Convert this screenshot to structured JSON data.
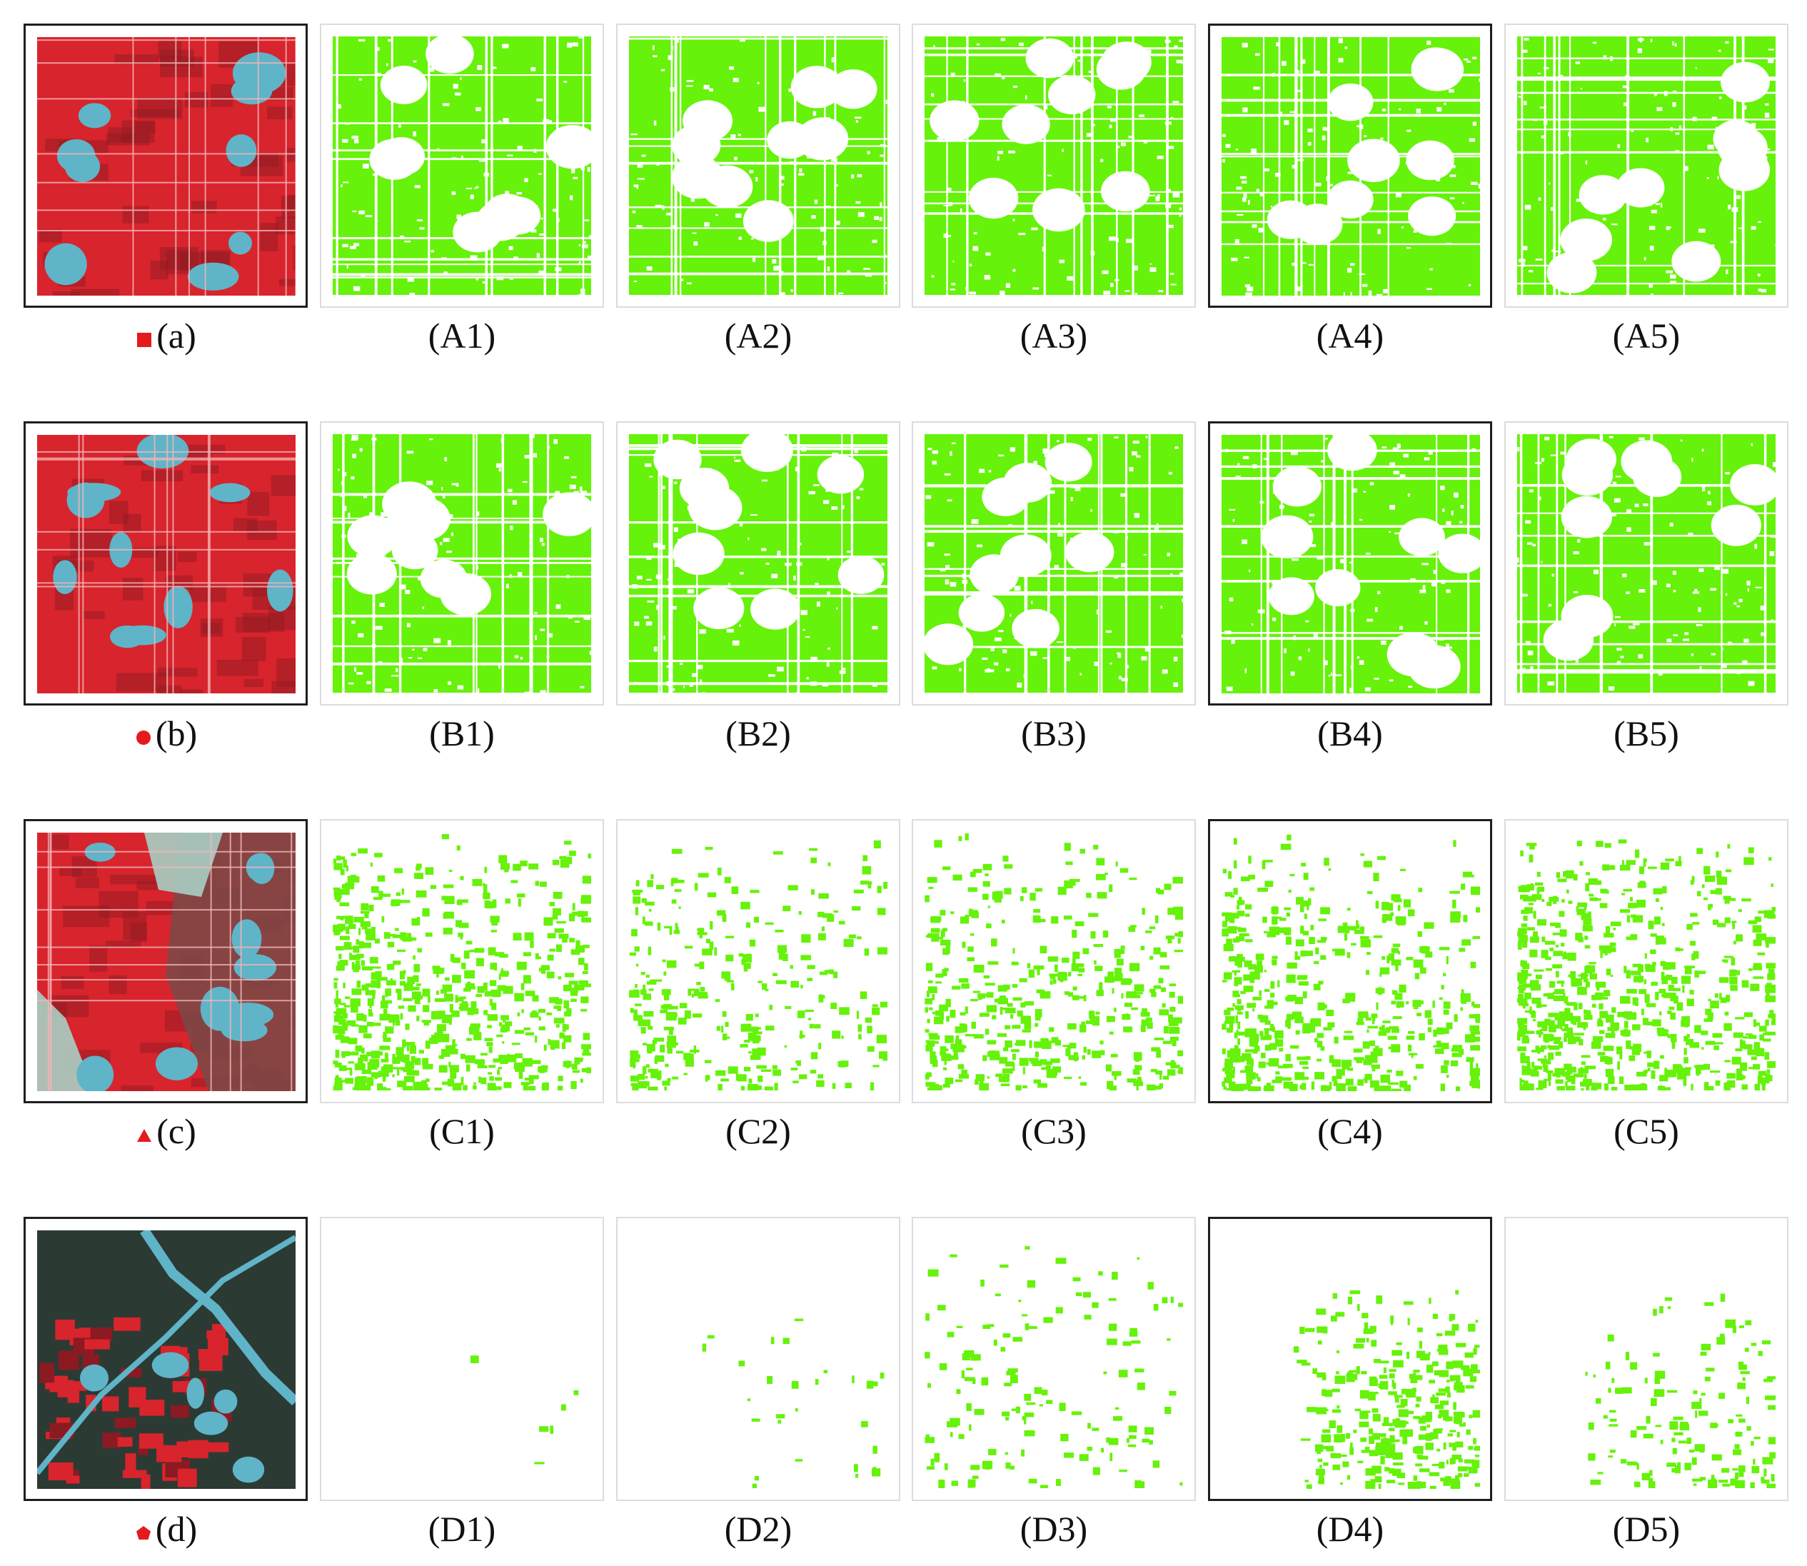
{
  "figure": {
    "rows": [
      {
        "id": "a",
        "marker_icon": "square-marker-icon",
        "marker_color": "#e41a1c",
        "panels": [
          {
            "label": "(a)",
            "kind": "image",
            "image_style": "false-color-red",
            "highlight": true
          },
          {
            "label": "(A1)",
            "kind": "map",
            "coverage": 0.82,
            "highlight": false
          },
          {
            "label": "(A2)",
            "kind": "map",
            "coverage": 0.84,
            "highlight": false
          },
          {
            "label": "(A3)",
            "kind": "map",
            "coverage": 0.84,
            "highlight": false
          },
          {
            "label": "(A4)",
            "kind": "map",
            "coverage": 0.85,
            "highlight": true
          },
          {
            "label": "(A5)",
            "kind": "map",
            "coverage": 0.86,
            "highlight": false
          }
        ]
      },
      {
        "id": "b",
        "marker_icon": "circle-marker-icon",
        "marker_color": "#e41a1c",
        "panels": [
          {
            "label": "(b)",
            "kind": "image",
            "image_style": "false-color-red",
            "highlight": true
          },
          {
            "label": "(B1)",
            "kind": "map",
            "coverage": 0.8,
            "highlight": false
          },
          {
            "label": "(B2)",
            "kind": "map",
            "coverage": 0.82,
            "highlight": false
          },
          {
            "label": "(B3)",
            "kind": "map",
            "coverage": 0.8,
            "highlight": false
          },
          {
            "label": "(B4)",
            "kind": "map",
            "coverage": 0.83,
            "highlight": true
          },
          {
            "label": "(B5)",
            "kind": "map",
            "coverage": 0.82,
            "highlight": false
          }
        ]
      },
      {
        "id": "c",
        "marker_icon": "triangle-marker-icon",
        "marker_color": "#e41a1c",
        "panels": [
          {
            "label": "(c)",
            "kind": "image",
            "image_style": "false-color-mixed",
            "highlight": true
          },
          {
            "label": "(C1)",
            "kind": "map",
            "coverage": 0.45,
            "highlight": false
          },
          {
            "label": "(C2)",
            "kind": "map",
            "coverage": 0.22,
            "highlight": false
          },
          {
            "label": "(C3)",
            "kind": "map",
            "coverage": 0.3,
            "highlight": false
          },
          {
            "label": "(C4)",
            "kind": "map",
            "coverage": 0.36,
            "highlight": true
          },
          {
            "label": "(C5)",
            "kind": "map",
            "coverage": 0.48,
            "highlight": false
          }
        ]
      },
      {
        "id": "d",
        "marker_icon": "pentagon-marker-icon",
        "marker_color": "#e41a1c",
        "panels": [
          {
            "label": "(d)",
            "kind": "image",
            "image_style": "false-color-mountain",
            "highlight": true
          },
          {
            "label": "(D1)",
            "kind": "map",
            "coverage": 0.004,
            "highlight": false
          },
          {
            "label": "(D2)",
            "kind": "map",
            "coverage": 0.02,
            "highlight": false
          },
          {
            "label": "(D3)",
            "kind": "map",
            "coverage": 0.1,
            "highlight": false
          },
          {
            "label": "(D4)",
            "kind": "map",
            "coverage": 0.22,
            "highlight": true
          },
          {
            "label": "(D5)",
            "kind": "map",
            "coverage": 0.1,
            "highlight": false
          }
        ]
      }
    ],
    "colors": {
      "crop": "#66f20a",
      "background": "#ffffff",
      "image_red": "#d8242c",
      "image_dark_red": "#8c1a22",
      "image_cyan": "#5fb4c8",
      "image_light": "#a9cfc4",
      "image_dark": "#2c3a34"
    }
  }
}
